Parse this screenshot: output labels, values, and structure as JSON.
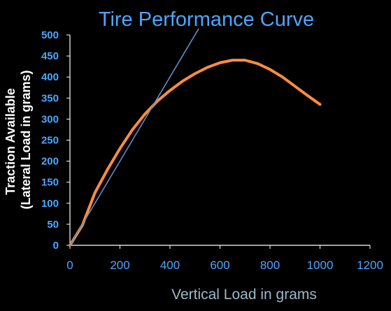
{
  "chart_data": {
    "type": "line",
    "title": "Tire Performance Curve",
    "xlabel": "Vertical Load in grams",
    "ylabel_lines": [
      "Traction Available",
      "(Lateral Load in grams)"
    ],
    "xlim": [
      0,
      1200
    ],
    "ylim": [
      0,
      500
    ],
    "x_ticks": [
      "0",
      "200",
      "400",
      "600",
      "800",
      "1000",
      "1200"
    ],
    "y_ticks": [
      "0",
      "50",
      "100",
      "150",
      "200",
      "250",
      "300",
      "350",
      "400",
      "450",
      "500"
    ],
    "grid": false,
    "legend": "none",
    "series": [
      {
        "x": [
          0,
          50,
          100,
          150,
          200,
          250,
          300,
          350,
          400,
          450,
          500,
          550,
          600,
          650,
          700,
          750,
          800,
          850,
          900,
          950,
          1000
        ],
        "y": [
          0,
          48,
          125,
          180,
          230,
          275,
          312,
          343,
          368,
          390,
          408,
          423,
          434,
          440,
          440,
          432,
          418,
          400,
          378,
          356,
          335
        ],
        "color": "#FF8C40"
      },
      {
        "x": [
          0,
          515
        ],
        "y": [
          0,
          515
        ],
        "color": "#5E8EC7"
      }
    ],
    "colors": {
      "background": "#000000",
      "axis": "#FFFFFF",
      "title": "#4DA6FF",
      "tick_labels_x": "#4DA6FF",
      "tick_labels_y": "#4DA6FF",
      "xlabel": "#9DB8C8",
      "ylabel": "#FFFFFF"
    }
  }
}
